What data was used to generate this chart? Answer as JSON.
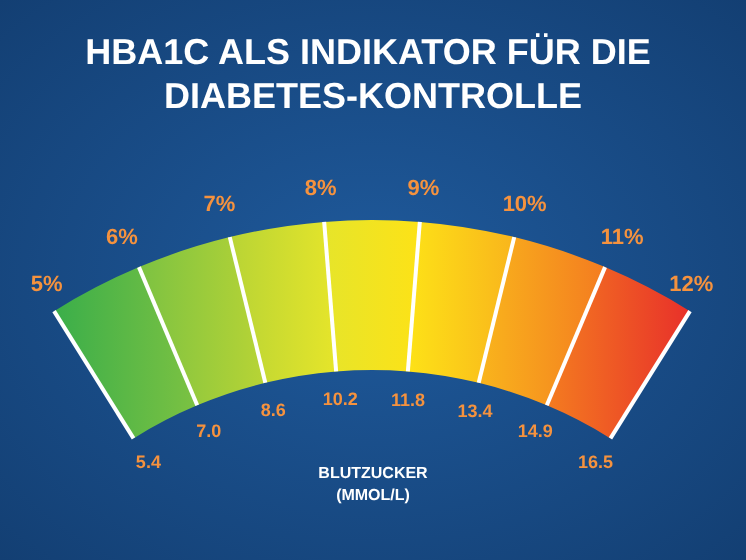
{
  "chart_data": {
    "type": "other",
    "title": "HBA1C ALS INDIKATOR FÜR DIE DIABETES-KONTROLLE",
    "xlabel": "BLUTZUCKER\n(MMOL/L)",
    "categories": [
      "5%",
      "6%",
      "7%",
      "8%",
      "9%",
      "10%",
      "11%",
      "12%"
    ],
    "values": [
      5.4,
      7.0,
      8.6,
      10.2,
      11.8,
      13.4,
      14.9,
      16.5
    ],
    "value_labels": [
      "5.4",
      "7.0",
      "8.6",
      "10.2",
      "11.8",
      "13.4",
      "14.9",
      "16.5"
    ],
    "colors": [
      "#3aae4a",
      "#7cc242",
      "#b8d435",
      "#e6e52a",
      "#fde217",
      "#f9b51c",
      "#f47c20",
      "#e8302a"
    ]
  }
}
